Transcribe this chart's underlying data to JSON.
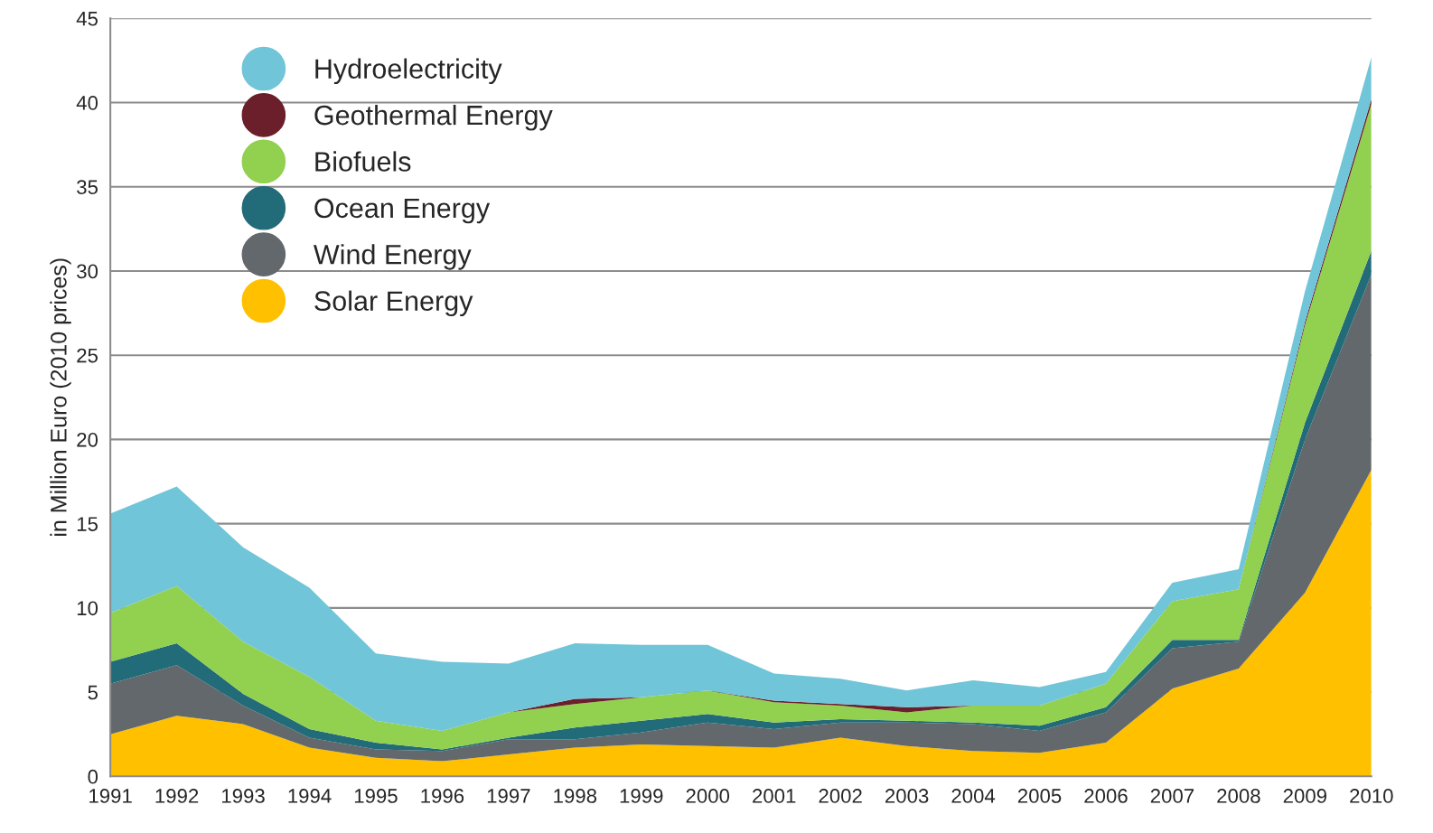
{
  "chart_data": {
    "type": "area",
    "stacked": true,
    "ylabel": "in Million Euro (2010 prices)",
    "categories": [
      "1991",
      "1992",
      "1993",
      "1994",
      "1995",
      "1996",
      "1997",
      "1998",
      "1999",
      "2000",
      "2001",
      "2002",
      "2003",
      "2004",
      "2005",
      "2006",
      "2007",
      "2008",
      "2009",
      "2010"
    ],
    "series": [
      {
        "name": "Solar Energy",
        "color": "#ffc000",
        "values": [
          2.5,
          3.6,
          3.1,
          1.7,
          1.1,
          0.9,
          1.3,
          1.7,
          1.9,
          1.8,
          1.7,
          2.3,
          1.8,
          1.5,
          1.4,
          2.0,
          5.2,
          6.4,
          10.9,
          18.2
        ]
      },
      {
        "name": "Wind Energy",
        "color": "#63686c",
        "values": [
          3.0,
          3.0,
          1.1,
          0.6,
          0.5,
          0.6,
          0.9,
          0.5,
          0.7,
          1.4,
          1.1,
          0.9,
          1.4,
          1.6,
          1.3,
          1.8,
          2.4,
          1.6,
          9.1,
          11.6
        ]
      },
      {
        "name": "Ocean Energy",
        "color": "#226b78",
        "values": [
          1.3,
          1.3,
          0.7,
          0.5,
          0.4,
          0.1,
          0.1,
          0.7,
          0.7,
          0.5,
          0.4,
          0.2,
          0.1,
          0.1,
          0.3,
          0.3,
          0.5,
          0.1,
          1.0,
          1.4
        ]
      },
      {
        "name": "Biofuels",
        "color": "#92d050",
        "values": [
          2.9,
          3.4,
          3.1,
          3.1,
          1.3,
          1.1,
          1.5,
          1.4,
          1.4,
          1.4,
          1.2,
          0.8,
          0.5,
          1.0,
          1.2,
          1.4,
          2.3,
          3.0,
          5.8,
          8.7
        ]
      },
      {
        "name": "Geothermal Energy",
        "color": "#6b1f2a",
        "values": [
          0,
          0,
          0,
          0,
          0,
          0,
          0,
          0.3,
          0,
          0,
          0.1,
          0.1,
          0.3,
          0,
          0,
          0,
          0,
          0,
          0.2,
          0.3
        ]
      },
      {
        "name": "Hydroelectricity",
        "color": "#71c5d8",
        "values": [
          5.9,
          5.9,
          5.6,
          5.3,
          4.0,
          4.1,
          2.9,
          3.3,
          3.1,
          2.7,
          1.6,
          1.5,
          1.0,
          1.5,
          1.1,
          0.7,
          1.1,
          1.2,
          1.8,
          2.5
        ]
      }
    ],
    "ylim": [
      0,
      45
    ],
    "yticks": [
      0,
      5,
      10,
      15,
      20,
      25,
      30,
      35,
      40,
      45
    ],
    "grid": "y",
    "legend": "top left"
  }
}
